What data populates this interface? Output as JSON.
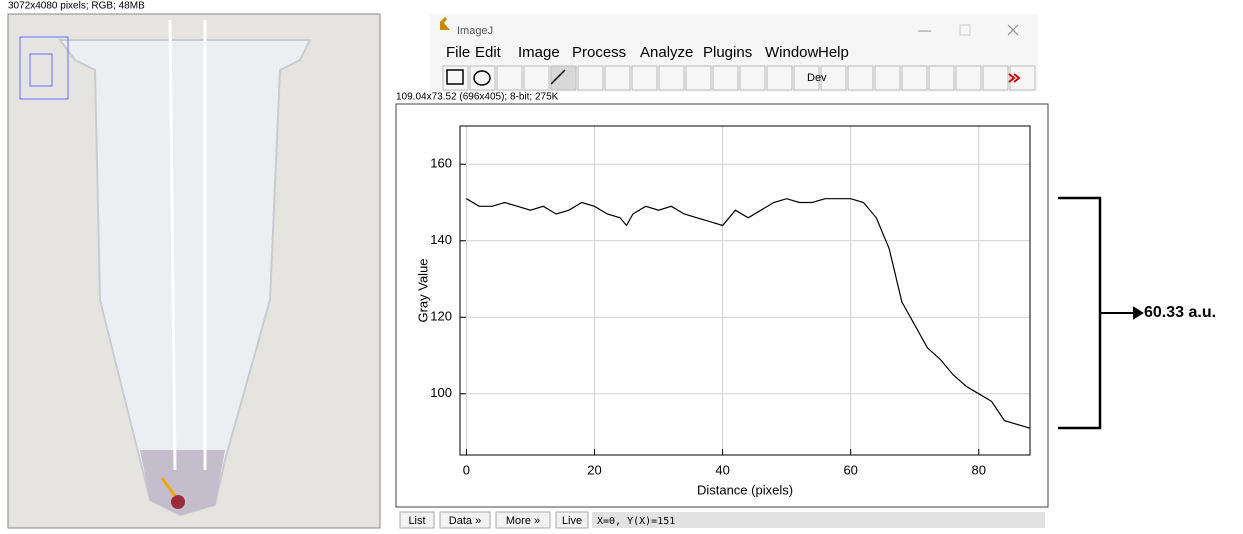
{
  "image_window": {
    "info": "3072x4080 pixels; RGB; 48MB"
  },
  "imagej": {
    "title": "ImageJ",
    "menu": [
      "File",
      "Edit",
      "Image",
      "Process",
      "Analyze",
      "Plugins",
      "Window",
      "Help"
    ],
    "dev_button": "Dev"
  },
  "plot_window": {
    "info": "109.04x73.52  (696x405); 8-bit; 275K",
    "buttons": [
      "List",
      "Data »",
      "More »",
      "Live"
    ],
    "status": "X=0, Y(X)=151"
  },
  "chart_data": {
    "type": "line",
    "xlabel": "Distance (pixels)",
    "ylabel": "Gray Value",
    "color": "#000000",
    "x": [
      0,
      2,
      4,
      6,
      8,
      10,
      12,
      14,
      16,
      18,
      20,
      22,
      24,
      25,
      26,
      28,
      30,
      32,
      34,
      36,
      38,
      40,
      42,
      44,
      46,
      48,
      50,
      52,
      54,
      56,
      58,
      60,
      62,
      64,
      66,
      68,
      70,
      72,
      74,
      76,
      78,
      80,
      82,
      84,
      86,
      88
    ],
    "values": [
      151,
      149,
      149,
      150,
      149,
      148,
      149,
      147,
      148,
      150,
      149,
      147,
      146,
      144,
      147,
      149,
      148,
      149,
      147,
      146,
      145,
      144,
      148,
      146,
      148,
      150,
      151,
      150,
      150,
      151,
      151,
      151,
      150,
      146,
      138,
      124,
      118,
      112,
      109,
      105,
      102,
      100,
      98,
      93,
      92,
      91
    ],
    "xlim": [
      -1,
      88
    ],
    "ylim": [
      84,
      170
    ],
    "xticks": [
      0,
      20,
      40,
      60,
      80
    ],
    "yticks": [
      100,
      120,
      140,
      160
    ],
    "grid": true,
    "annotation": "60.33 a.u."
  }
}
